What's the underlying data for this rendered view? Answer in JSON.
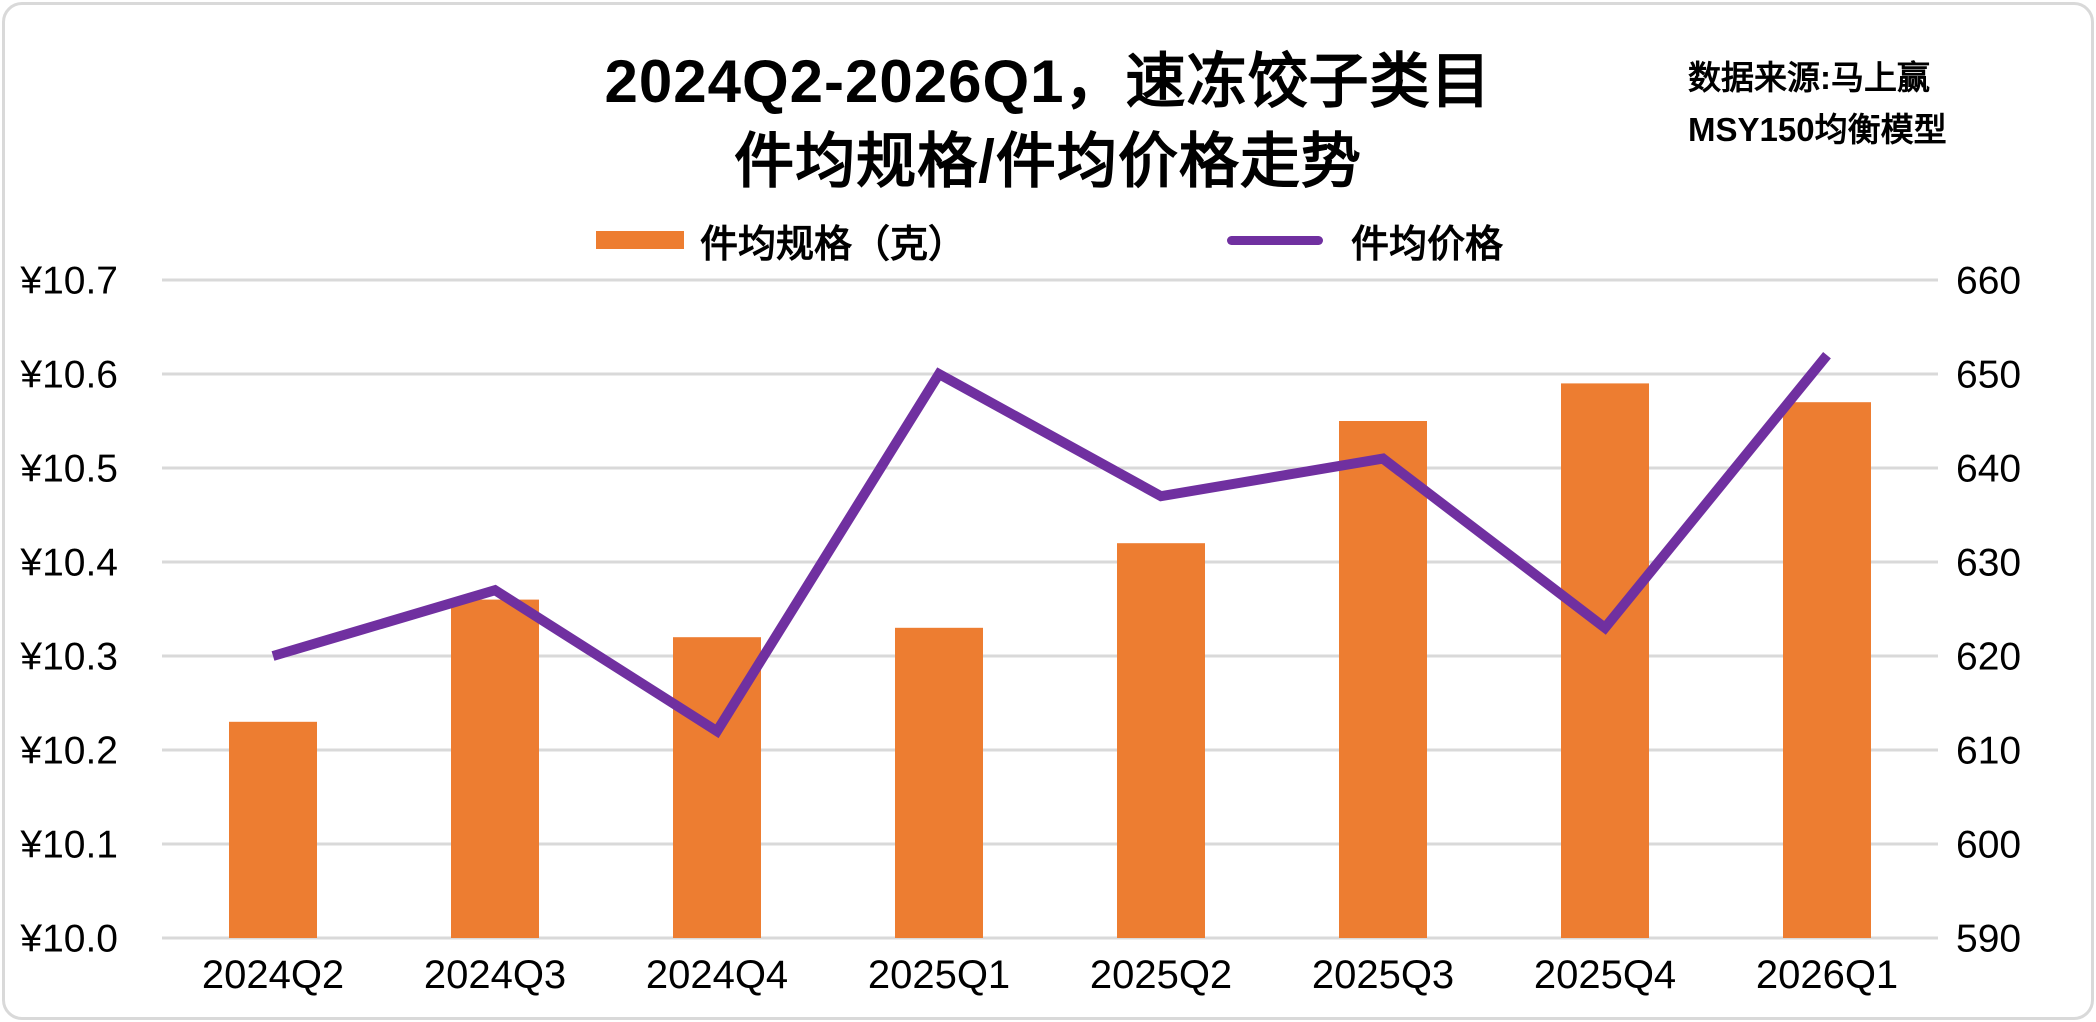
{
  "title": {
    "line1": "2024Q2-2026Q1，速冻饺子类目",
    "line2": "件均规格/件均价格走势"
  },
  "source": {
    "line1": "数据来源:马上赢",
    "line2": "MSY150均衡模型"
  },
  "legend": {
    "items": [
      {
        "label": "件均规格（克）",
        "marker": "bar-swatch",
        "color": "#ED7D31"
      },
      {
        "label": "件均价格",
        "marker": "line-swatch",
        "color": "#7030A0"
      }
    ]
  },
  "chart_data": {
    "type": "combo (bar + line, dual axis)",
    "title": "2024Q2-2026Q1，速冻饺子类目 件均规格/件均价格走势",
    "categories": [
      "2024Q2",
      "2024Q3",
      "2024Q4",
      "2025Q1",
      "2025Q2",
      "2025Q3",
      "2025Q4",
      "2026Q1"
    ],
    "series": [
      {
        "name": "件均规格（克）",
        "type": "bar",
        "y_axis": "right",
        "color": "#ED7D31",
        "values": [
          613,
          626,
          622,
          623,
          632,
          645,
          649,
          647
        ]
      },
      {
        "name": "件均价格",
        "type": "line",
        "y_axis": "left",
        "color": "#7030A0",
        "values": [
          10.3,
          10.37,
          10.22,
          10.6,
          10.47,
          10.51,
          10.33,
          10.62
        ]
      }
    ],
    "left_axis": {
      "min": 10.0,
      "max": 10.7,
      "tick_step": 0.1,
      "tick_labels_top_to_bottom": [
        "¥10.7",
        "¥10.6",
        "¥10.5",
        "¥10.4",
        "¥10.3",
        "¥10.2",
        "¥10.1",
        "¥10.0"
      ]
    },
    "right_axis": {
      "min": 590,
      "max": 660,
      "tick_step": 10,
      "tick_labels_top_to_bottom": [
        "660",
        "650",
        "640",
        "630",
        "620",
        "610",
        "600",
        "590"
      ]
    },
    "grid": true,
    "gridline_color": "#D9D9D9",
    "legend_position": "top"
  }
}
